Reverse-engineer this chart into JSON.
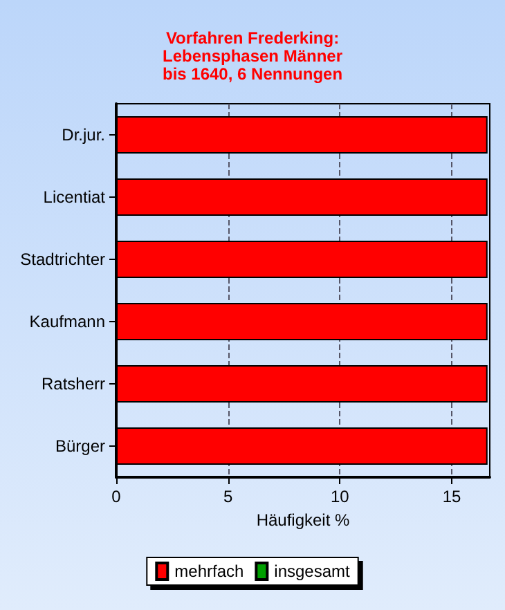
{
  "chart_data": {
    "type": "bar",
    "orientation": "horizontal",
    "title": "Vorfahren Frederking:\nLebensphasen Männer\nbis 1640, 6 Nennungen",
    "xlabel": "Häufigkeit %",
    "categories": [
      "Dr.jur.",
      "Licentiat",
      "Stadtrichter",
      "Kaufmann",
      "Ratsherr",
      "Bürger"
    ],
    "series": [
      {
        "name": "mehrfach",
        "color": "#ff0000",
        "values": [
          16.6,
          16.6,
          16.6,
          16.6,
          16.6,
          16.6
        ]
      },
      {
        "name": "insgesamt",
        "color": "#00a000",
        "values": [
          null,
          null,
          null,
          null,
          null,
          null
        ]
      }
    ],
    "xlim": [
      0,
      16.7
    ],
    "xticks": [
      0,
      5,
      10,
      15
    ],
    "grid": "x",
    "legend": "bottom"
  }
}
